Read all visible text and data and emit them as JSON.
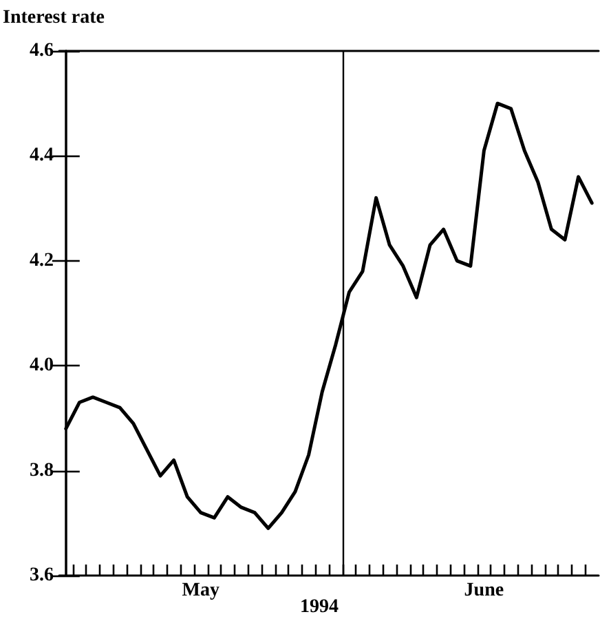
{
  "chart_data": {
    "type": "line",
    "ylabel": "Interest rate",
    "xlabel": "1994",
    "categories": [
      null,
      null,
      null,
      null,
      null,
      null,
      null,
      null,
      null,
      null,
      "May",
      null,
      null,
      null,
      null,
      null,
      null,
      null,
      null,
      null,
      null,
      null,
      null,
      null,
      null,
      null,
      null,
      null,
      null,
      null,
      null,
      "June",
      null,
      null,
      null,
      null,
      null,
      null,
      null,
      null
    ],
    "series": [
      {
        "color": "#000000",
        "values": [
          3.88,
          3.93,
          3.94,
          3.93,
          3.92,
          3.89,
          3.84,
          3.79,
          3.82,
          3.75,
          3.72,
          3.71,
          3.75,
          3.73,
          3.72,
          3.69,
          3.72,
          3.76,
          3.83,
          3.95,
          4.04,
          4.14,
          4.18,
          4.32,
          4.23,
          4.19,
          4.13,
          4.23,
          4.26,
          4.2,
          4.19,
          4.41,
          4.5,
          4.49,
          4.41,
          4.35,
          4.26,
          4.24,
          4.36,
          4.31
        ]
      }
    ],
    "ylim": [
      3.6,
      4.6
    ],
    "yticks": [
      {
        "value": 3.6,
        "label": "3.6"
      },
      {
        "value": 3.8,
        "label": "3.8"
      },
      {
        "value": 4.0,
        "label": "4.0"
      },
      {
        "value": 4.2,
        "label": "4.2"
      },
      {
        "value": 4.4,
        "label": "4.4"
      },
      {
        "value": 4.6,
        "label": "4.6"
      }
    ],
    "grid": false,
    "marker": "none",
    "line_style": "solid"
  }
}
